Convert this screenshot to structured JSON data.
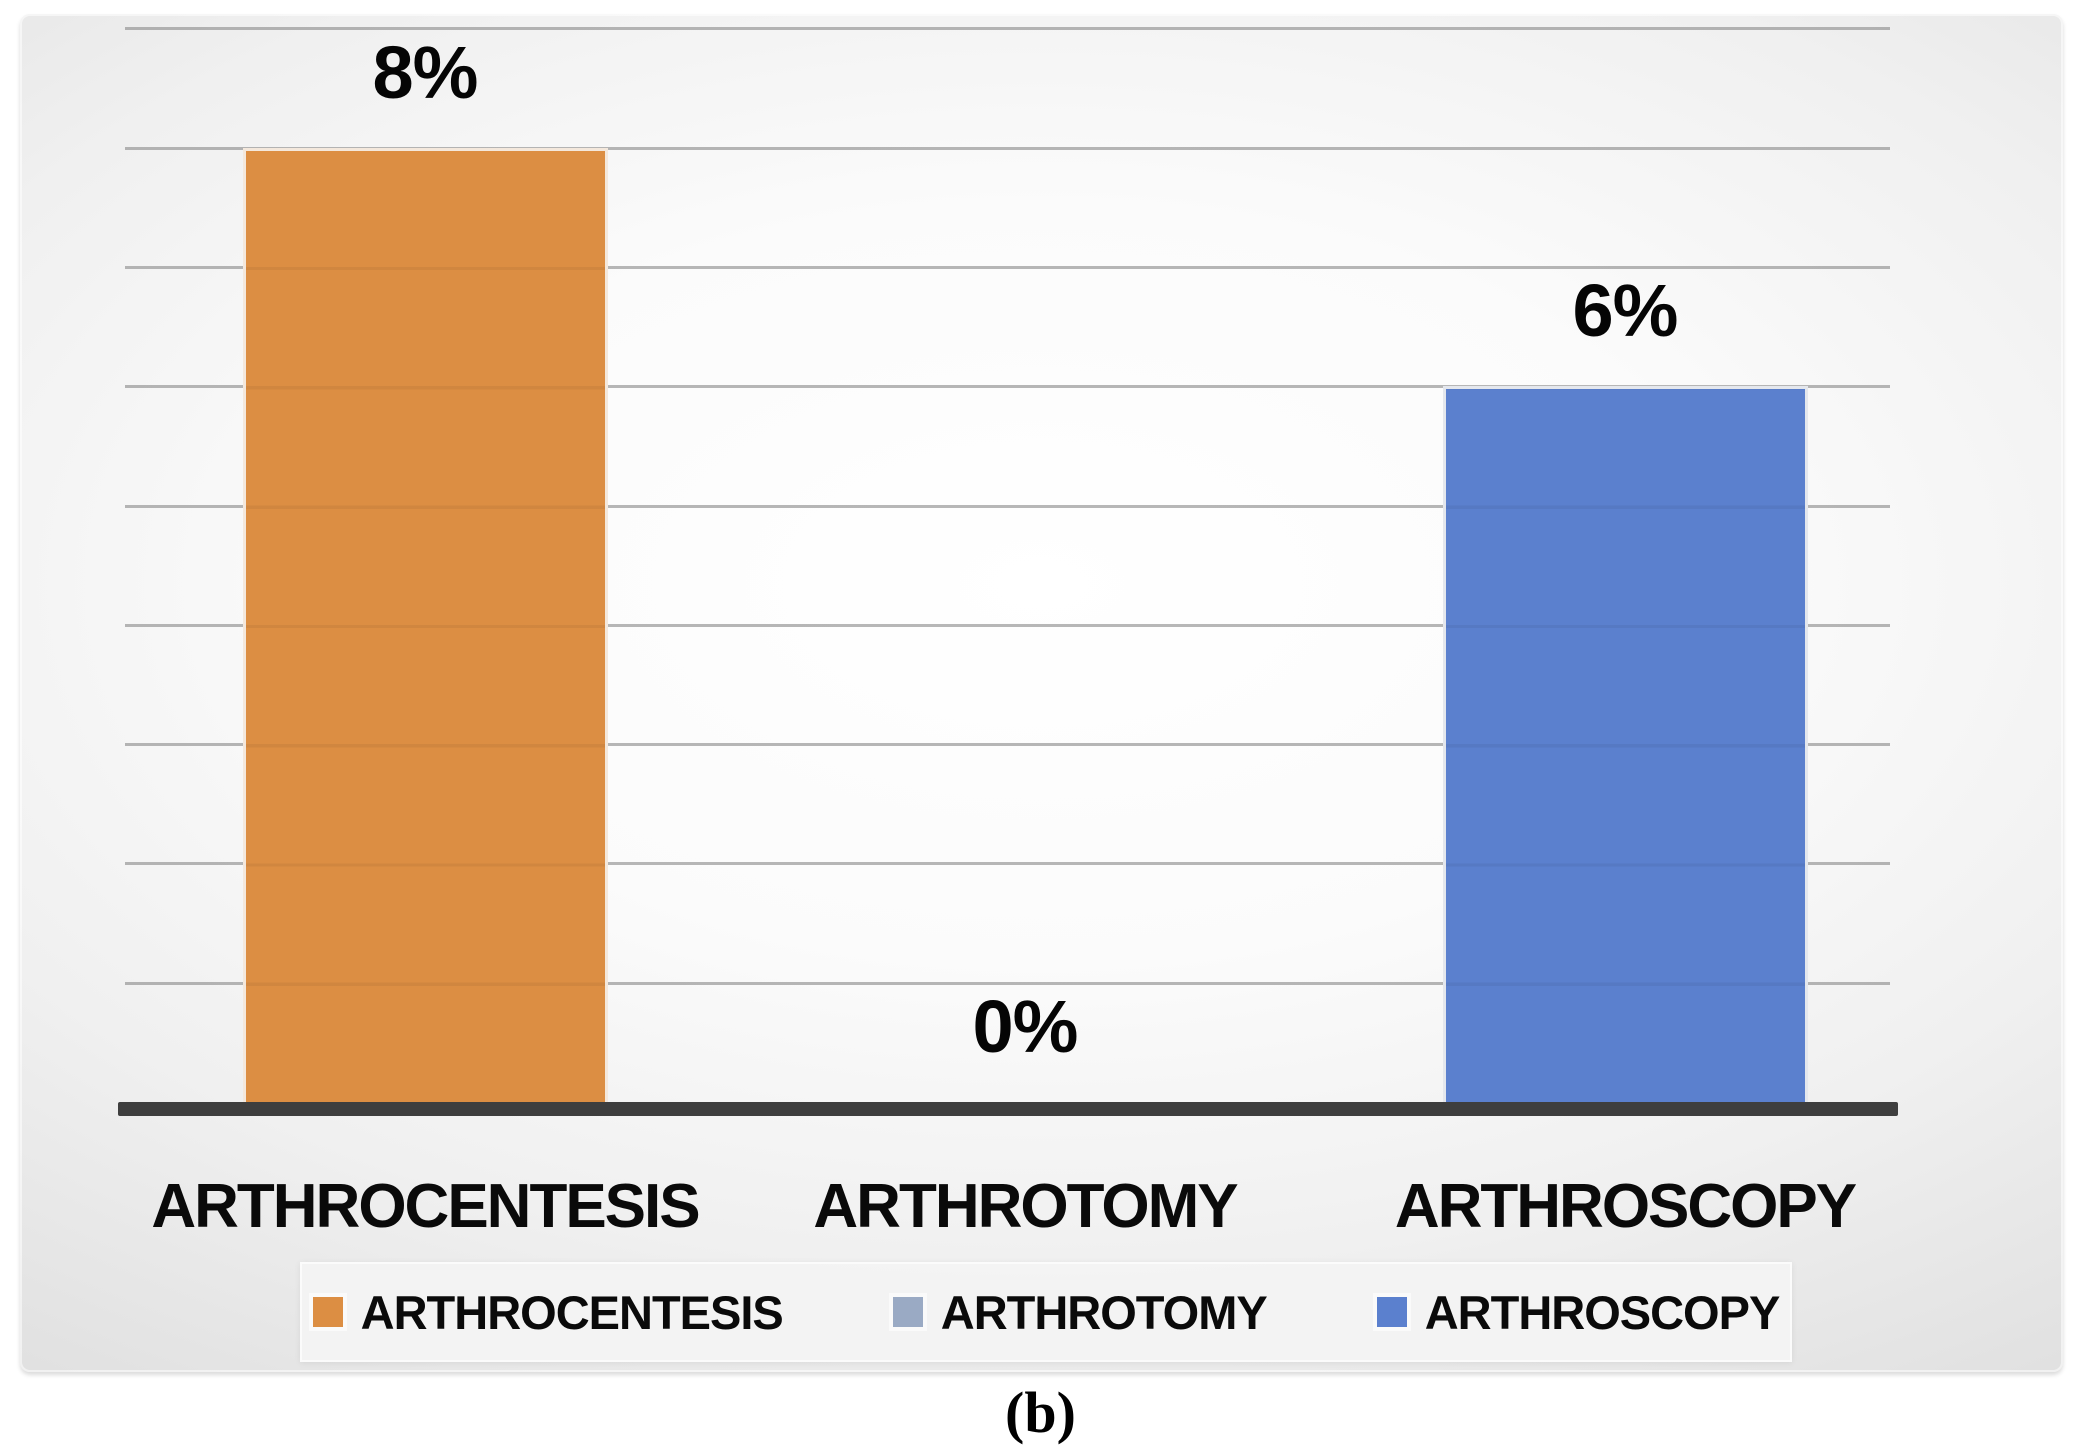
{
  "figure": {
    "caption": "(b)"
  },
  "chart_data": {
    "type": "bar",
    "title": "",
    "xlabel": "",
    "ylabel": "",
    "categories": [
      "ARTHROCENTESIS",
      "ARTHROTOMY",
      "ARTHROSCOPY"
    ],
    "values": [
      8,
      0,
      6
    ],
    "data_labels": [
      "8%",
      "0%",
      "6%"
    ],
    "series_colors": [
      "#DC8E43",
      "#9AAAC4",
      "#5B80CE"
    ],
    "ylim": [
      0,
      9
    ],
    "gridline_interval": 1,
    "y_axis_tick_labels_visible": false,
    "grid": "horizontal",
    "legend": {
      "position": "bottom",
      "entries": [
        "ARTHROCENTESIS",
        "ARTHROTOMY",
        "ARTHROSCOPY"
      ]
    },
    "colors": {
      "axis_line": "#3E3E3E",
      "gridline": "#A9A9A9",
      "legend_background": "#F1F1F1",
      "label_text": "#000000"
    }
  }
}
